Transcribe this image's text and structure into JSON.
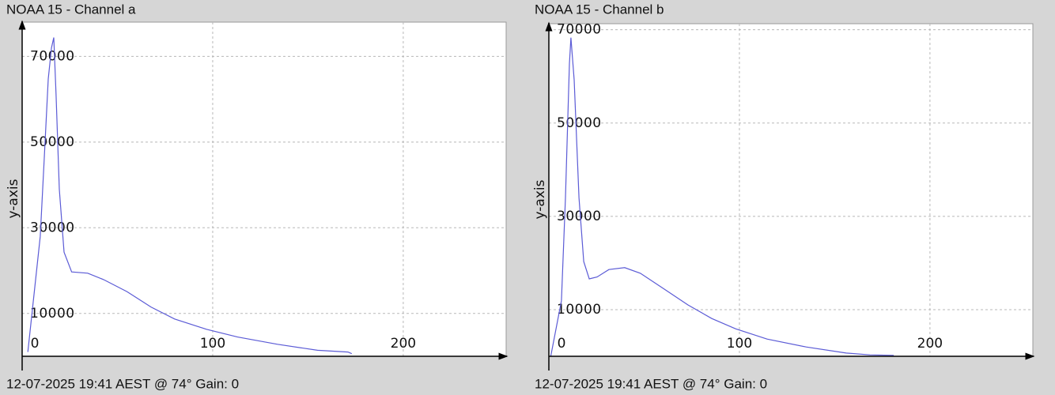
{
  "chart_data": [
    {
      "type": "line",
      "title": "NOAA 15 - Channel a",
      "footer": "12-07-2025 19:41 AEST @ 74° Gain: 0",
      "y_label": "y-axis",
      "x": [
        3,
        9.5,
        11.6,
        13.7,
        15.4,
        16.6,
        17.8,
        19.5,
        22,
        26,
        34.4,
        42.7,
        55,
        67.6,
        80,
        96.7,
        113,
        134,
        155,
        171,
        173
      ],
      "series": [
        {
          "color": "#5b5bd6",
          "values": [
            1000,
            28000,
            46000,
            64700,
            72000,
            74400,
            61000,
            39000,
            24300,
            19700,
            19400,
            17900,
            15100,
            11500,
            8700,
            6300,
            4500,
            2800,
            1400,
            1000,
            600
          ]
        }
      ],
      "xlim": [
        0,
        254
      ],
      "ylim": [
        0,
        78000
      ],
      "xticks": [
        0,
        100,
        200
      ],
      "yticks": [
        10000,
        30000,
        50000,
        70000
      ],
      "grid": true
    },
    {
      "type": "line",
      "title": "NOAA 15 - Channel b",
      "footer": "12-07-2025 19:41 AEST @ 74° Gain: 0",
      "y_label": "y-axis",
      "x": [
        1,
        6.6,
        8.7,
        10.8,
        11.6,
        13.3,
        15.8,
        18.3,
        21.2,
        25.3,
        31.5,
        39.8,
        48,
        60.6,
        73,
        85.5,
        98,
        114.5,
        135,
        156,
        168.5,
        181
      ],
      "series": [
        {
          "color": "#5b5bd6",
          "values": [
            0,
            11900,
            34000,
            62700,
            68300,
            59300,
            34000,
            20300,
            16600,
            17000,
            18600,
            19000,
            17800,
            14400,
            11000,
            8100,
            5900,
            3700,
            2000,
            700,
            300,
            200
          ]
        }
      ],
      "xlim": [
        0,
        254
      ],
      "ylim": [
        0,
        71300
      ],
      "xticks": [
        0,
        100,
        200
      ],
      "yticks": [
        10000,
        30000,
        50000,
        70000
      ],
      "grid": true
    }
  ]
}
